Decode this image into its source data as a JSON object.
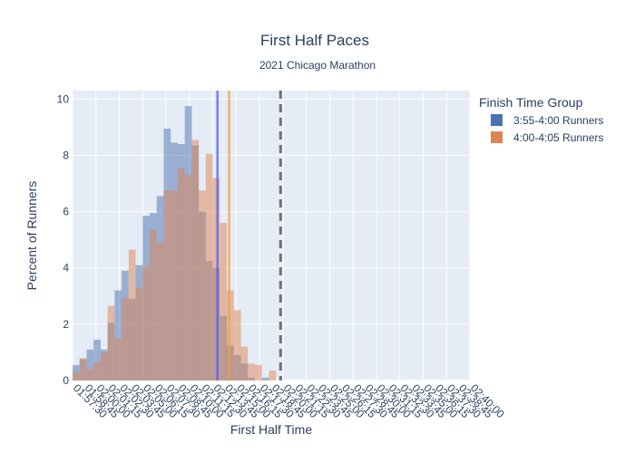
{
  "chart_data": {
    "type": "histogram",
    "title": "First Half Paces",
    "subtitle": "2021 Chicago Marathon",
    "xlabel": "First Half Time",
    "ylabel": "Percent of Runners",
    "ylim": [
      0,
      10.3
    ],
    "yticks": [
      0,
      2,
      4,
      6,
      8,
      10
    ],
    "xticks": [
      "01:57:30",
      "01:58:45",
      "02:00:00",
      "02:01:15",
      "02:02:30",
      "02:03:45",
      "02:05:00",
      "02:06:15",
      "02:07:30",
      "02:08:45",
      "02:10:00",
      "02:11:15",
      "02:12:30",
      "02:13:45",
      "02:15:00",
      "02:16:15",
      "02:17:30",
      "02:18:45",
      "02:20:00",
      "02:21:15",
      "02:22:30",
      "02:23:45",
      "02:25:00",
      "02:26:15",
      "02:27:30",
      "02:28:45",
      "02:30:00",
      "02:31:15",
      "02:32:30",
      "02:33:45",
      "02:35:00",
      "02:36:15",
      "02:37:30",
      "02:38:45",
      "02:40:00"
    ],
    "bin_width": "00:00:45",
    "legend": {
      "title": "Finish Time Group",
      "position": "right"
    },
    "series": [
      {
        "name": "3:55-4:00 Runners",
        "color": "#4C72B0",
        "values": [
          0.55,
          0.75,
          1.1,
          1.45,
          1.1,
          2.05,
          3.2,
          3.9,
          2.9,
          4.1,
          5.85,
          5.95,
          6.55,
          8.95,
          8.45,
          8.4,
          9.75,
          8.35,
          6.0,
          4.25,
          4.0,
          2.3,
          1.25,
          0.9,
          0.6,
          0.1,
          0.0,
          0.1,
          0.0,
          0.0
        ]
      },
      {
        "name": "4:00-4:05 Runners",
        "color": "#DD8452",
        "values": [
          0.3,
          0.8,
          0.4,
          0.65,
          1.0,
          2.65,
          1.5,
          2.95,
          4.65,
          3.3,
          4.05,
          5.35,
          4.9,
          6.75,
          6.75,
          7.55,
          7.3,
          8.55,
          6.75,
          8.05,
          7.2,
          5.6,
          3.2,
          2.5,
          1.2,
          0.6,
          0.55,
          0.0,
          0.35,
          0.0
        ]
      }
    ],
    "vlines": [
      {
        "kind": "mean",
        "series": "3:55-4:00 Runners",
        "x": "02:13:00",
        "color": "#4a5cff",
        "style": "solid"
      },
      {
        "kind": "mean",
        "series": "4:00-4:05 Runners",
        "x": "02:14:15",
        "color": "#f0a040",
        "style": "solid"
      },
      {
        "kind": "reference",
        "x": "02:19:45",
        "color": "#5a5a5a",
        "style": "dashed"
      }
    ]
  }
}
